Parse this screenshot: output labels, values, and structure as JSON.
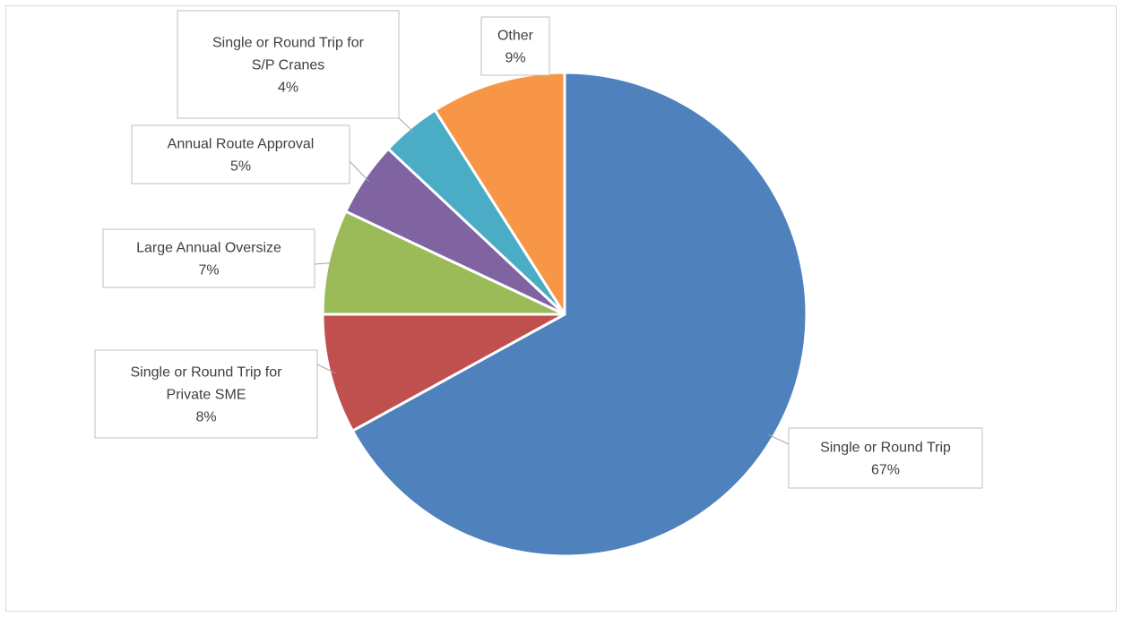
{
  "chart_data": {
    "type": "pie",
    "title": "",
    "start_angle_deg": 0,
    "direction": "clockwise",
    "slices": [
      {
        "label_lines": [
          "Single or Round Trip"
        ],
        "value": 67,
        "percent_label": "67%",
        "color": "#4F81BD"
      },
      {
        "label_lines": [
          "Single or Round Trip for",
          "Private SME"
        ],
        "value": 8,
        "percent_label": "8%",
        "color": "#C0504D"
      },
      {
        "label_lines": [
          "Large Annual Oversize"
        ],
        "value": 7,
        "percent_label": "7%",
        "color": "#9BBB59"
      },
      {
        "label_lines": [
          "Annual Route Approval"
        ],
        "value": 5,
        "percent_label": "5%",
        "color": "#8064A2"
      },
      {
        "label_lines": [
          "Single or Round Trip for",
          "S/P Cranes"
        ],
        "value": 4,
        "percent_label": "4%",
        "color": "#4BACC6"
      },
      {
        "label_lines": [
          "Other"
        ],
        "value": 9,
        "percent_label": "9%",
        "color": "#F79646"
      }
    ],
    "legend": "none",
    "data_labels": "callouts"
  }
}
